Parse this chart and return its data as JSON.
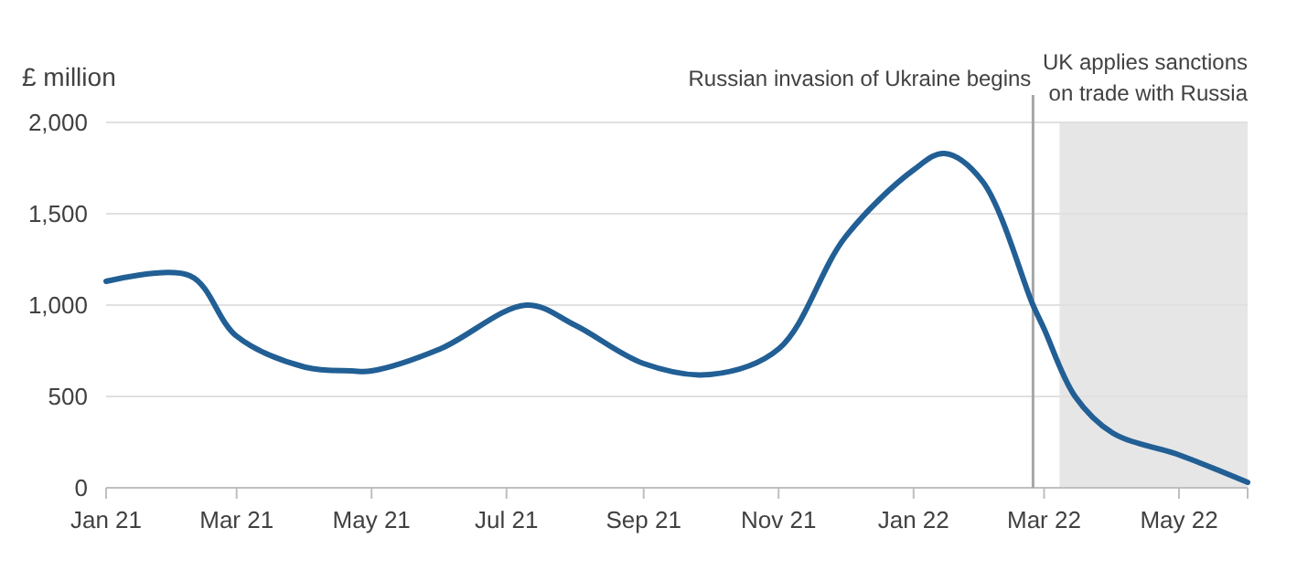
{
  "chart_data": {
    "type": "line",
    "ylabel": "£ million",
    "x": [
      "2021-01-01",
      "2021-02-08",
      "2021-03-01",
      "2021-04-01",
      "2021-04-22",
      "2021-05-01",
      "2021-06-01",
      "2021-07-10",
      "2021-08-01",
      "2021-09-01",
      "2021-10-01",
      "2021-11-01",
      "2021-12-01",
      "2022-01-01",
      "2022-01-15",
      "2022-02-01",
      "2022-02-24",
      "2022-03-01",
      "2022-03-15",
      "2022-04-01",
      "2022-05-01",
      "2022-06-01"
    ],
    "series": [
      {
        "color": "#215f95",
        "values": [
          1130,
          1160,
          830,
          660,
          640,
          640,
          760,
          1000,
          890,
          680,
          620,
          760,
          1370,
          1740,
          1830,
          1680,
          1000,
          870,
          500,
          300,
          180,
          30
        ]
      }
    ],
    "xlim": [
      "2021-01-01",
      "2022-06-01"
    ],
    "xticks": [
      {
        "value": "2021-01-01",
        "label": "Jan 21"
      },
      {
        "value": "2021-03-01",
        "label": "Mar 21"
      },
      {
        "value": "2021-05-01",
        "label": "May 21"
      },
      {
        "value": "2021-07-01",
        "label": "Jul 21"
      },
      {
        "value": "2021-09-01",
        "label": "Sep 21"
      },
      {
        "value": "2021-11-01",
        "label": "Nov 21"
      },
      {
        "value": "2022-01-01",
        "label": "Jan 22"
      },
      {
        "value": "2022-03-01",
        "label": "Mar 22"
      },
      {
        "value": "2022-05-01",
        "label": "May 22"
      },
      {
        "value": "2022-06-01",
        "label": null
      }
    ],
    "ylim": [
      0,
      2000
    ],
    "yticks": [
      0,
      {
        "value": 500,
        "label": "500"
      },
      {
        "value": 1000,
        "label": "1,000"
      },
      {
        "value": 1500,
        "label": "1,500"
      },
      {
        "value": 2000,
        "label": "2,000"
      }
    ],
    "grid": "y",
    "line_style": "solid",
    "marker": "none",
    "ref_lines": [
      {
        "axis": "x",
        "value": "2022-02-24",
        "label": "Russian invasion of Ukraine begins",
        "color": "#a6a6a6"
      }
    ],
    "bands": [
      {
        "axis": "x",
        "from": "2022-03-08",
        "to": "2022-06-01",
        "label": "UK applies sanctions on trade with Russia",
        "color": "#e6e6e6"
      }
    ]
  }
}
